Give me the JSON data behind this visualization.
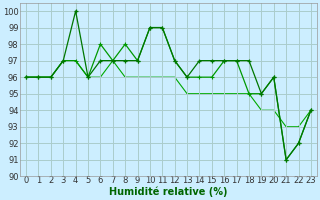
{
  "xlabel": "Humidité relative (%)",
  "xlim": [
    -0.5,
    23.5
  ],
  "ylim": [
    90,
    100.5
  ],
  "yticks": [
    90,
    91,
    92,
    93,
    94,
    95,
    96,
    97,
    98,
    99,
    100
  ],
  "xticks": [
    0,
    1,
    2,
    3,
    4,
    5,
    6,
    7,
    8,
    9,
    10,
    11,
    12,
    13,
    14,
    15,
    16,
    17,
    18,
    19,
    20,
    21,
    22,
    23
  ],
  "bg_color": "#cceeff",
  "grid_color": "#aacccc",
  "series1": [
    96,
    96,
    96,
    97,
    100,
    96,
    97,
    97,
    97,
    97,
    99,
    99,
    97,
    96,
    97,
    97,
    97,
    97,
    97,
    95,
    96,
    91,
    92,
    94
  ],
  "series2": [
    96,
    96,
    96,
    97,
    97,
    96,
    98,
    97,
    98,
    97,
    99,
    99,
    97,
    96,
    96,
    96,
    97,
    97,
    95,
    95,
    96,
    91,
    92,
    94
  ],
  "series3": [
    96,
    96,
    96,
    97,
    97,
    96,
    96,
    97,
    96,
    96,
    96,
    96,
    96,
    95,
    95,
    95,
    95,
    95,
    95,
    94,
    94,
    93,
    93,
    94
  ],
  "tick_fontsize": 6,
  "label_fontsize": 7,
  "line_color1": "#007700",
  "line_color2": "#009900",
  "line_color3": "#00aa00"
}
